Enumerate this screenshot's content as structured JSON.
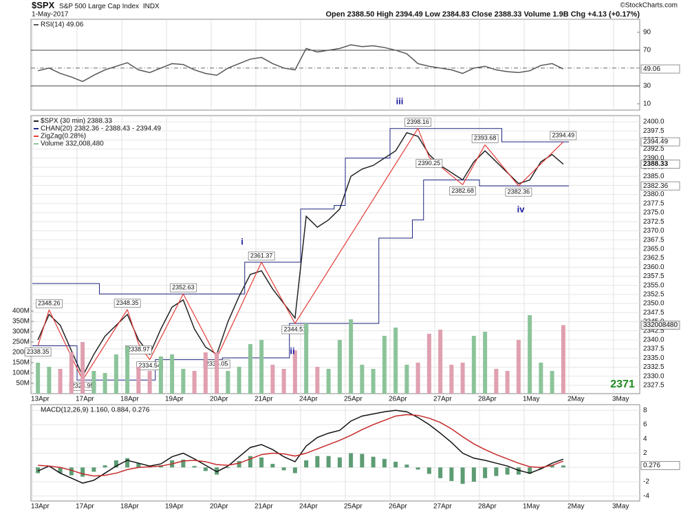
{
  "header": {
    "title": "$SPX",
    "subtitle": "S&P 500 Large Cap Index",
    "exchange": "INDX",
    "date": "1-May-2017",
    "quote": "Open 2388.50  High 2394.49  Low 2384.83  Close 2388.33  Volume 1.9B  Chg +4.13 (+0.17%)",
    "source": "©StockCharts.com"
  },
  "chart_data": [
    {
      "type": "line",
      "ylim": [
        3,
        104.6
      ],
      "yticks": [
        10,
        30,
        50,
        70,
        90
      ],
      "grid": false,
      "levels": [
        70,
        50,
        30
      ],
      "series": [
        {
          "name": "RSI(14) 49.06",
          "color": "#555555",
          "box": true,
          "values": [
            47,
            50,
            44,
            40,
            35,
            42,
            48,
            52,
            56,
            48,
            45,
            50,
            55,
            54,
            48,
            44,
            42,
            50,
            55,
            60,
            62,
            55,
            50,
            48,
            72,
            68,
            70,
            72,
            76,
            74,
            75,
            73,
            70,
            66,
            55,
            52,
            50,
            48,
            44,
            50,
            52,
            48,
            46,
            45,
            47,
            53,
            55,
            49.06
          ]
        }
      ]
    },
    {
      "type": "line",
      "grid": true,
      "categories": [
        "13Apr",
        null,
        null,
        null,
        "17Apr",
        null,
        null,
        null,
        "18Apr",
        null,
        null,
        null,
        "19Apr",
        null,
        null,
        null,
        "20Apr",
        null,
        null,
        null,
        "21Apr",
        null,
        null,
        null,
        "24Apr",
        null,
        null,
        null,
        "25Apr",
        null,
        null,
        null,
        "26Apr",
        null,
        null,
        null,
        "27Apr",
        null,
        null,
        null,
        "28Apr",
        null,
        null,
        null,
        "1May",
        null,
        null,
        null,
        "2May",
        null,
        null,
        null,
        "3May",
        null,
        null,
        null
      ],
      "ylim": [
        2325.2,
        2401.7
      ],
      "yticks": [
        {
          "value": 2400,
          "label": "2400.0"
        },
        2397.5,
        {
          "value": 2395,
          "label": "2395.0"
        },
        2392.5,
        {
          "value": 2390,
          "label": "2390.0"
        },
        2387.5,
        {
          "value": 2385,
          "label": "2385.0"
        },
        2382.5,
        {
          "value": 2380,
          "label": "2380.0"
        },
        2377.5,
        {
          "value": 2375,
          "label": "2375.0"
        },
        2372.5,
        {
          "value": 2370,
          "label": "2370.0"
        },
        2367.5,
        {
          "value": 2365,
          "label": "2365.0"
        },
        2362.5,
        {
          "value": 2360,
          "label": "2360.0"
        },
        2357.5,
        {
          "value": 2355,
          "label": "2355.0"
        },
        2352.5,
        {
          "value": 2350,
          "label": "2350.0"
        },
        2347.5,
        {
          "value": 2345,
          "label": "2345.0"
        },
        2342.5,
        {
          "value": 2340,
          "label": "2340.0"
        },
        2337.5,
        {
          "value": 2335,
          "label": "2335.0"
        },
        2332.5,
        {
          "value": 2330,
          "label": "2330.0"
        },
        2327.5
      ],
      "y2lim": [
        0,
        1347000000
      ],
      "y2ticks": [
        {
          "value": 50000000,
          "label": "50M"
        },
        {
          "value": 100000000,
          "label": "100M"
        },
        {
          "value": 150000000,
          "label": "150M"
        },
        {
          "value": 200000000,
          "label": "200M"
        },
        {
          "value": 250000000,
          "label": "250M"
        },
        {
          "value": 300000000,
          "label": "300M"
        },
        {
          "value": 350000000,
          "label": "350M"
        },
        {
          "value": 400000000,
          "label": "400M"
        }
      ],
      "annotations": [
        "i",
        "ii",
        "iii",
        "iv",
        "2371"
      ],
      "series": [
        {
          "name": "$SPX (30 min) 2388.33",
          "color": "#222222",
          "box": true,
          "values": [
            2340,
            2347,
            2344,
            2337,
            2330,
            2336,
            2341,
            2344,
            2347,
            2340,
            2336,
            2343,
            2349,
            2351,
            2343,
            2338,
            2336,
            2345,
            2352,
            2358,
            2359,
            2354,
            2350,
            2346,
            2374,
            2371,
            2373,
            2376,
            2385,
            2387,
            2388,
            2390,
            2392,
            2397,
            2396,
            2391,
            2388,
            2386,
            2384,
            2389,
            2392,
            2389,
            2386,
            2383,
            2384,
            2389,
            2391,
            2388.33,
            null,
            null,
            null,
            null,
            null,
            null,
            null,
            null
          ]
        },
        {
          "name": "CHAN(20) 2382.36 - 2388.43 - 2394.49",
          "color": "#1a237e",
          "style": "step",
          "box": true,
          "values": [
            2355.5,
            2355.5,
            2355.5,
            2355.5,
            2355.5,
            2355.5,
            2352.63,
            2352.63,
            2352.63,
            2352.63,
            2352.63,
            2352.63,
            2352.63,
            2352.63,
            2352.63,
            2352.63,
            2352.63,
            2352.63,
            2352.63,
            2361.37,
            2361.37,
            2361.37,
            2361.37,
            2361.37,
            2376,
            2376,
            2376,
            2377,
            2390,
            2390,
            2390,
            2390,
            2398.16,
            2398.16,
            2398.16,
            2398.16,
            2398.16,
            2398.16,
            2398.16,
            2398.16,
            2398.16,
            2398.16,
            2394.49,
            2394.49,
            2394.49,
            2394.49,
            2394.49,
            2394.49,
            null,
            null,
            null,
            null,
            null,
            null,
            null,
            null
          ]
        },
        {
          "color": "#1a237e",
          "style": "step",
          "box": true,
          "values": [
            2338.35,
            2338.35,
            2338.35,
            2338.35,
            2328.95,
            2328.95,
            2328.95,
            2328.95,
            2328.95,
            2328.95,
            2328.95,
            2334.54,
            2334.54,
            2334.54,
            2334.54,
            2334.54,
            2334.54,
            2335.05,
            2335.05,
            2335.05,
            2335.05,
            2335.05,
            2335.05,
            2344.51,
            2344.51,
            2344.51,
            2344.51,
            2344.51,
            2344.51,
            2344.51,
            2344.51,
            2368,
            2368,
            2368,
            2373,
            2384,
            2384,
            2384,
            2384,
            2384,
            2382.36,
            2382.36,
            2382.36,
            2382.36,
            2382.36,
            2382.36,
            2382.36,
            2382.36,
            null,
            null,
            null,
            null,
            null,
            null,
            null,
            null
          ]
        },
        {
          "name": "ZigZag(0.28%)",
          "color": "#e53935",
          "style": "zigzag",
          "values": [
            2338.35,
            2348.26,
            null,
            null,
            2328.95,
            null,
            null,
            null,
            2348.35,
            2338.97,
            2334.54,
            null,
            null,
            2352.63,
            null,
            null,
            2335.05,
            null,
            null,
            null,
            2361.37,
            null,
            null,
            2344.51,
            null,
            null,
            null,
            null,
            null,
            null,
            null,
            null,
            null,
            null,
            2398.16,
            2390.25,
            null,
            null,
            2382.68,
            null,
            2393.68,
            null,
            null,
            2382.36,
            null,
            null,
            null,
            2394.49,
            null,
            null,
            null,
            null,
            null,
            null,
            null,
            null
          ]
        },
        {
          "name": "Volume 332,008,480",
          "color": "#8cc49a",
          "down_color": "#e0a0b0",
          "style": "bar",
          "axis": "y2",
          "box": true,
          "values": [
            150000000,
            130000000,
            120000000,
            200000000,
            250000000,
            110000000,
            100000000,
            190000000,
            230000000,
            130000000,
            110000000,
            180000000,
            190000000,
            120000000,
            110000000,
            200000000,
            200000000,
            110000000,
            130000000,
            240000000,
            260000000,
            140000000,
            120000000,
            210000000,
            340000000,
            130000000,
            120000000,
            260000000,
            360000000,
            140000000,
            120000000,
            280000000,
            320000000,
            140000000,
            150000000,
            290000000,
            310000000,
            140000000,
            150000000,
            280000000,
            300000000,
            120000000,
            110000000,
            260000000,
            380000000,
            150000000,
            110000000,
            332008480,
            null,
            null,
            null,
            null,
            null,
            null,
            null,
            null
          ]
        }
      ]
    },
    {
      "type": "line",
      "title": "MACD(12,26,9) 1.160, 0.884, 0.276",
      "grid": true,
      "categories": [
        "13Apr",
        null,
        null,
        null,
        "17Apr",
        null,
        null,
        null,
        "18Apr",
        null,
        null,
        null,
        "19Apr",
        null,
        null,
        null,
        "20Apr",
        null,
        null,
        null,
        "21Apr",
        null,
        null,
        null,
        "24Apr",
        null,
        null,
        null,
        "25Apr",
        null,
        null,
        null,
        "26Apr",
        null,
        null,
        null,
        "27Apr",
        null,
        null,
        null,
        "28Apr",
        null,
        null,
        null,
        "1May",
        null,
        null,
        null,
        "2May",
        null,
        null,
        null,
        "3May",
        null,
        null,
        null
      ],
      "ylim": [
        -4.7,
        8.8
      ],
      "yticks": [
        8,
        6,
        4,
        2,
        0,
        -2,
        -4
      ],
      "series": [
        {
          "color": "#5e9c74",
          "style": "bar",
          "box": true,
          "values": [
            -0.8,
            0,
            -0.8,
            -1.1,
            -1.3,
            -0.6,
            0.3,
            1.0,
            1.3,
            0.6,
            0.1,
            0.3,
            1.0,
            1.1,
            0.2,
            -0.5,
            -1.0,
            -0.1,
            0.9,
            1.6,
            1.4,
            0.5,
            -0.4,
            -0.8,
            1.0,
            1.6,
            1.6,
            1.4,
            2.0,
            1.9,
            1.5,
            1.2,
            0.8,
            0.4,
            -0.3,
            -0.9,
            -1.5,
            -1.9,
            -2.3,
            -2.0,
            -1.5,
            -1.2,
            -1.0,
            -1.0,
            -0.9,
            -0.2,
            0.3,
            0.276,
            null,
            null,
            null,
            null,
            null,
            null,
            null,
            null
          ]
        },
        {
          "color": "#111111",
          "values": [
            -0.5,
            0.2,
            -0.8,
            -1.5,
            -2.2,
            -1.8,
            -0.8,
            0.2,
            1.0,
            0.6,
            0.2,
            0.5,
            1.5,
            2.0,
            1.2,
            0.3,
            -0.6,
            0.2,
            1.5,
            2.8,
            3.2,
            2.5,
            1.5,
            0.8,
            3.0,
            4.2,
            4.8,
            5.2,
            6.5,
            7.2,
            7.5,
            7.8,
            8.0,
            7.8,
            7.0,
            6.0,
            4.8,
            3.5,
            2.0,
            1.3,
            1.0,
            0.6,
            0.2,
            -0.4,
            -0.8,
            -0.2,
            0.6,
            1.16,
            null,
            null,
            null,
            null,
            null,
            null,
            null,
            null
          ]
        },
        {
          "color": "#c62828",
          "values": [
            0.3,
            0.2,
            0,
            -0.4,
            -0.9,
            -1.2,
            -1.1,
            -0.8,
            -0.3,
            0,
            0.1,
            0.2,
            0.5,
            0.9,
            1.0,
            0.8,
            0.4,
            0.3,
            0.6,
            1.2,
            1.8,
            2.0,
            1.9,
            1.6,
            2.0,
            2.6,
            3.2,
            3.8,
            4.5,
            5.3,
            6.0,
            6.6,
            7.2,
            7.4,
            7.3,
            6.9,
            6.3,
            5.4,
            4.3,
            3.3,
            2.5,
            1.8,
            1.2,
            0.6,
            0.1,
            0,
            0.3,
            0.884,
            null,
            null,
            null,
            null,
            null,
            null,
            null,
            null
          ]
        }
      ]
    }
  ]
}
